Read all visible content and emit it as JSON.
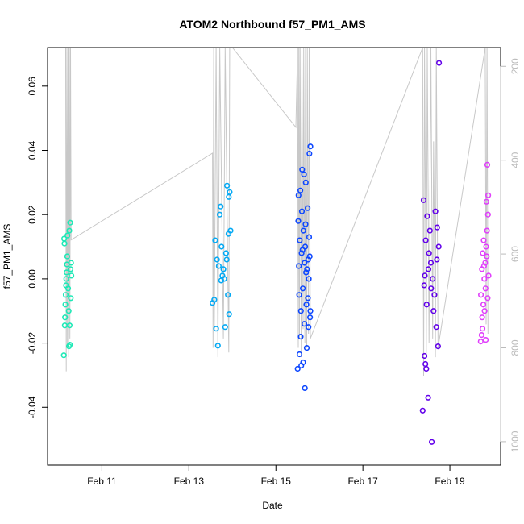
{
  "chart_data": {
    "type": "scatter",
    "title": "ATOM2 Northbound f57_PM1_AMS",
    "xlabel": "Date",
    "ylabel": "f57_PM1_AMS",
    "xlim": [
      "2005-02-09 18:00",
      "2005-02-20 04:00"
    ],
    "ylim": [
      -0.058,
      0.072
    ],
    "x_ticks": [
      {
        "date": "2005-02-11",
        "label": "Feb 11"
      },
      {
        "date": "2005-02-13",
        "label": "Feb 13"
      },
      {
        "date": "2005-02-15",
        "label": "Feb 15"
      },
      {
        "date": "2005-02-17",
        "label": "Feb 17"
      },
      {
        "date": "2005-02-19",
        "label": "Feb 19"
      }
    ],
    "y_ticks": [
      {
        "value": -0.04,
        "label": "-0.04"
      },
      {
        "value": -0.02,
        "label": "-0.02"
      },
      {
        "value": 0.0,
        "label": "0.00"
      },
      {
        "value": 0.02,
        "label": "0.02"
      },
      {
        "value": 0.04,
        "label": "0.04"
      },
      {
        "value": 0.06,
        "label": "0.06"
      }
    ],
    "secondary_axis": {
      "position": "right",
      "color": "#bbbbbb",
      "reversed": true,
      "lim": [
        160,
        1050
      ],
      "ticks": [
        {
          "value": 200,
          "label": "200"
        },
        {
          "value": 400,
          "label": "400"
        },
        {
          "value": 600,
          "label": "600"
        },
        {
          "value": 800,
          "label": "800"
        },
        {
          "value": 1000,
          "label": "1000"
        }
      ]
    },
    "grid": false,
    "legend": "none",
    "marker": "open-circle",
    "series": [
      {
        "color": "#1de9b6",
        "points": [
          [
            "2005-02-10 03:00",
            -0.0238
          ],
          [
            "2005-02-10 03:30",
            -0.0145
          ],
          [
            "2005-02-10 03:40",
            -0.012
          ],
          [
            "2005-02-10 03:50",
            -0.008
          ],
          [
            "2005-02-10 04:00",
            -0.005
          ],
          [
            "2005-02-10 04:10",
            -0.002
          ],
          [
            "2005-02-10 04:20",
            0.0
          ],
          [
            "2005-02-10 04:30",
            0.002
          ],
          [
            "2005-02-10 04:40",
            0.0045
          ],
          [
            "2005-02-10 03:20",
            0.011
          ],
          [
            "2005-02-10 03:10",
            0.0125
          ],
          [
            "2005-02-10 05:00",
            0.0135
          ],
          [
            "2005-02-10 06:00",
            0.015
          ],
          [
            "2005-02-10 06:30",
            0.0175
          ],
          [
            "2005-02-10 05:20",
            -0.003
          ],
          [
            "2005-02-10 05:40",
            -0.01
          ],
          [
            "2005-02-10 06:10",
            -0.0145
          ],
          [
            "2005-02-10 06:20",
            -0.0205
          ],
          [
            "2005-02-10 06:40",
            0.003
          ],
          [
            "2005-02-10 07:00",
            0.005
          ],
          [
            "2005-02-10 07:10",
            0.001
          ],
          [
            "2005-02-10 05:50",
            -0.021
          ],
          [
            "2005-02-10 04:50",
            0.007
          ],
          [
            "2005-02-10 06:50",
            -0.006
          ]
        ]
      },
      {
        "color": "#03a9f4",
        "points": [
          [
            "2005-02-13 13:00",
            -0.0075
          ],
          [
            "2005-02-13 14:00",
            -0.0065
          ],
          [
            "2005-02-13 15:00",
            -0.0155
          ],
          [
            "2005-02-13 16:00",
            -0.0208
          ],
          [
            "2005-02-13 14:30",
            0.012
          ],
          [
            "2005-02-13 15:30",
            0.006
          ],
          [
            "2005-02-13 16:30",
            0.004
          ],
          [
            "2005-02-13 17:00",
            0.02
          ],
          [
            "2005-02-13 17:30",
            0.0225
          ],
          [
            "2005-02-13 18:00",
            0.01
          ],
          [
            "2005-02-13 19:00",
            0.003
          ],
          [
            "2005-02-13 20:00",
            -0.015
          ],
          [
            "2005-02-13 21:00",
            0.029
          ],
          [
            "2005-02-13 22:00",
            0.0255
          ],
          [
            "2005-02-13 22:30",
            0.027
          ],
          [
            "2005-02-13 23:00",
            0.015
          ],
          [
            "2005-02-13 20:30",
            0.008
          ],
          [
            "2005-02-13 21:30",
            -0.005
          ],
          [
            "2005-02-13 22:10",
            -0.011
          ],
          [
            "2005-02-13 19:30",
            0.0
          ],
          [
            "2005-02-13 18:30",
            0.001
          ],
          [
            "2005-02-13 17:50",
            -0.0005
          ],
          [
            "2005-02-13 20:50",
            0.006
          ],
          [
            "2005-02-13 21:50",
            0.014
          ]
        ]
      },
      {
        "color": "#0d47ff",
        "points": [
          [
            "2005-02-15 12:00",
            -0.028
          ],
          [
            "2005-02-15 13:00",
            -0.0235
          ],
          [
            "2005-02-15 14:00",
            -0.027
          ],
          [
            "2005-02-15 15:00",
            -0.026
          ],
          [
            "2005-02-15 16:00",
            -0.034
          ],
          [
            "2005-02-15 17:00",
            -0.0215
          ],
          [
            "2005-02-15 18:00",
            -0.015
          ],
          [
            "2005-02-15 19:00",
            -0.01
          ],
          [
            "2005-02-15 12:30",
            0.026
          ],
          [
            "2005-02-15 13:30",
            0.0275
          ],
          [
            "2005-02-15 14:30",
            0.034
          ],
          [
            "2005-02-15 15:30",
            0.0325
          ],
          [
            "2005-02-15 16:30",
            0.03
          ],
          [
            "2005-02-15 17:30",
            0.022
          ],
          [
            "2005-02-15 18:30",
            0.039
          ],
          [
            "2005-02-15 19:00",
            0.0412
          ],
          [
            "2005-02-15 13:10",
            0.012
          ],
          [
            "2005-02-15 14:10",
            0.008
          ],
          [
            "2005-02-15 15:10",
            0.015
          ],
          [
            "2005-02-15 16:10",
            0.01
          ],
          [
            "2005-02-15 17:10",
            0.003
          ],
          [
            "2005-02-15 18:10",
            0.0
          ],
          [
            "2005-02-15 12:50",
            -0.005
          ],
          [
            "2005-02-15 13:50",
            -0.01
          ],
          [
            "2005-02-15 14:50",
            -0.003
          ],
          [
            "2005-02-15 15:50",
            0.005
          ],
          [
            "2005-02-15 16:50",
            -0.008
          ],
          [
            "2005-02-15 17:50",
            0.006
          ],
          [
            "2005-02-15 18:50",
            -0.012
          ],
          [
            "2005-02-15 12:20",
            0.018
          ],
          [
            "2005-02-15 14:20",
            0.021
          ],
          [
            "2005-02-15 16:20",
            0.017
          ],
          [
            "2005-02-15 18:20",
            0.013
          ],
          [
            "2005-02-15 13:40",
            -0.018
          ],
          [
            "2005-02-15 15:40",
            -0.014
          ],
          [
            "2005-02-15 17:40",
            -0.006
          ],
          [
            "2005-02-15 12:40",
            0.004
          ],
          [
            "2005-02-15 14:40",
            0.009
          ],
          [
            "2005-02-15 16:40",
            0.002
          ],
          [
            "2005-02-15 18:40",
            0.007
          ]
        ]
      },
      {
        "color": "#6200ea",
        "points": [
          [
            "2005-02-18 09:00",
            -0.041
          ],
          [
            "2005-02-18 10:00",
            -0.024
          ],
          [
            "2005-02-18 10:30",
            -0.0265
          ],
          [
            "2005-02-18 11:00",
            -0.028
          ],
          [
            "2005-02-18 12:00",
            -0.037
          ],
          [
            "2005-02-18 14:00",
            -0.0508
          ],
          [
            "2005-02-18 09:30",
            0.0245
          ],
          [
            "2005-02-18 11:30",
            0.0195
          ],
          [
            "2005-02-18 13:00",
            0.015
          ],
          [
            "2005-02-18 16:00",
            0.021
          ],
          [
            "2005-02-18 17:00",
            0.016
          ],
          [
            "2005-02-18 18:00",
            0.0672
          ],
          [
            "2005-02-18 17:30",
            -0.021
          ],
          [
            "2005-02-18 16:30",
            -0.015
          ],
          [
            "2005-02-18 15:00",
            -0.01
          ],
          [
            "2005-02-18 12:30",
            0.008
          ],
          [
            "2005-02-18 13:30",
            0.005
          ],
          [
            "2005-02-18 14:30",
            0.0
          ],
          [
            "2005-02-18 15:30",
            -0.005
          ],
          [
            "2005-02-18 10:10",
            0.001
          ],
          [
            "2005-02-18 11:10",
            -0.008
          ],
          [
            "2005-02-18 12:10",
            0.003
          ],
          [
            "2005-02-18 09:50",
            -0.002
          ],
          [
            "2005-02-18 16:50",
            0.006
          ],
          [
            "2005-02-18 17:50",
            0.01
          ],
          [
            "2005-02-18 10:40",
            0.012
          ],
          [
            "2005-02-18 13:40",
            -0.003
          ]
        ]
      },
      {
        "color": "#e040fb",
        "points": [
          [
            "2005-02-19 17:00",
            -0.0195
          ],
          [
            "2005-02-19 17:30",
            -0.0175
          ],
          [
            "2005-02-19 18:00",
            -0.0155
          ],
          [
            "2005-02-19 18:30",
            -0.008
          ],
          [
            "2005-02-19 19:00",
            0.0
          ],
          [
            "2005-02-19 19:30",
            0.005
          ],
          [
            "2005-02-19 20:00",
            0.01
          ],
          [
            "2005-02-19 20:30",
            0.015
          ],
          [
            "2005-02-19 21:00",
            0.02
          ],
          [
            "2005-02-19 20:10",
            0.024
          ],
          [
            "2005-02-19 21:10",
            0.026
          ],
          [
            "2005-02-19 20:40",
            0.0355
          ],
          [
            "2005-02-19 17:10",
            -0.005
          ],
          [
            "2005-02-19 17:40",
            0.003
          ],
          [
            "2005-02-19 18:10",
            0.008
          ],
          [
            "2005-02-19 18:40",
            0.012
          ],
          [
            "2005-02-19 19:10",
            -0.01
          ],
          [
            "2005-02-19 19:40",
            -0.003
          ],
          [
            "2005-02-19 20:20",
            0.007
          ],
          [
            "2005-02-19 20:50",
            -0.006
          ],
          [
            "2005-02-19 21:20",
            0.001
          ],
          [
            "2005-02-19 17:50",
            -0.012
          ],
          [
            "2005-02-19 18:50",
            0.004
          ],
          [
            "2005-02-19 19:50",
            -0.019
          ]
        ]
      }
    ],
    "background_trace": {
      "color": "#c8c8c8",
      "axis": "secondary",
      "points": [
        [
          "2005-02-10 04:00",
          160
        ],
        [
          "2005-02-10 04:20",
          850
        ],
        [
          "2005-02-10 04:40",
          160
        ],
        [
          "2005-02-10 05:00",
          800
        ],
        [
          "2005-02-10 05:20",
          160
        ],
        [
          "2005-02-10 05:40",
          820
        ],
        [
          "2005-02-10 06:00",
          160
        ],
        [
          "2005-02-10 06:20",
          780
        ],
        [
          "2005-02-10 06:40",
          160
        ],
        [
          "2005-02-10 07:00",
          570
        ],
        [
          "2005-02-13 13:00",
          385
        ],
        [
          "2005-02-13 13:20",
          800
        ],
        [
          "2005-02-13 13:40",
          160
        ],
        [
          "2005-02-13 14:00",
          760
        ],
        [
          "2005-02-13 15:00",
          160
        ],
        [
          "2005-02-13 16:00",
          820
        ],
        [
          "2005-02-13 17:00",
          160
        ],
        [
          "2005-02-13 19:00",
          780
        ],
        [
          "2005-02-13 20:00",
          160
        ],
        [
          "2005-02-13 22:00",
          810
        ],
        [
          "2005-02-13 22:30",
          160
        ],
        [
          "2005-02-14 00:00",
          160
        ],
        [
          "2005-02-15 11:00",
          330
        ],
        [
          "2005-02-15 12:00",
          160
        ],
        [
          "2005-02-15 12:20",
          800
        ],
        [
          "2005-02-15 12:40",
          160
        ],
        [
          "2005-02-15 13:00",
          780
        ],
        [
          "2005-02-15 13:20",
          160
        ],
        [
          "2005-02-15 14:00",
          820
        ],
        [
          "2005-02-15 14:20",
          160
        ],
        [
          "2005-02-15 15:00",
          760
        ],
        [
          "2005-02-15 15:20",
          160
        ],
        [
          "2005-02-15 16:00",
          790
        ],
        [
          "2005-02-15 16:20",
          160
        ],
        [
          "2005-02-15 17:00",
          800
        ],
        [
          "2005-02-15 17:20",
          160
        ],
        [
          "2005-02-15 18:00",
          770
        ],
        [
          "2005-02-15 18:20",
          160
        ],
        [
          "2005-02-15 19:00",
          780
        ],
        [
          "2005-02-18 09:00",
          160
        ],
        [
          "2005-02-18 09:30",
          860
        ],
        [
          "2005-02-18 10:00",
          160
        ],
        [
          "2005-02-18 11:00",
          820
        ],
        [
          "2005-02-18 11:30",
          160
        ],
        [
          "2005-02-18 12:30",
          790
        ],
        [
          "2005-02-18 13:30",
          160
        ],
        [
          "2005-02-18 14:30",
          780
        ],
        [
          "2005-02-18 15:00",
          360
        ],
        [
          "2005-02-18 16:00",
          820
        ],
        [
          "2005-02-18 16:30",
          160
        ],
        [
          "2005-02-18 17:30",
          800
        ],
        [
          "2005-02-19 19:30",
          160
        ],
        [
          "2005-02-19 20:00",
          750
        ],
        [
          "2005-02-19 20:30",
          160
        ],
        [
          "2005-02-19 21:00",
          770
        ]
      ]
    }
  }
}
